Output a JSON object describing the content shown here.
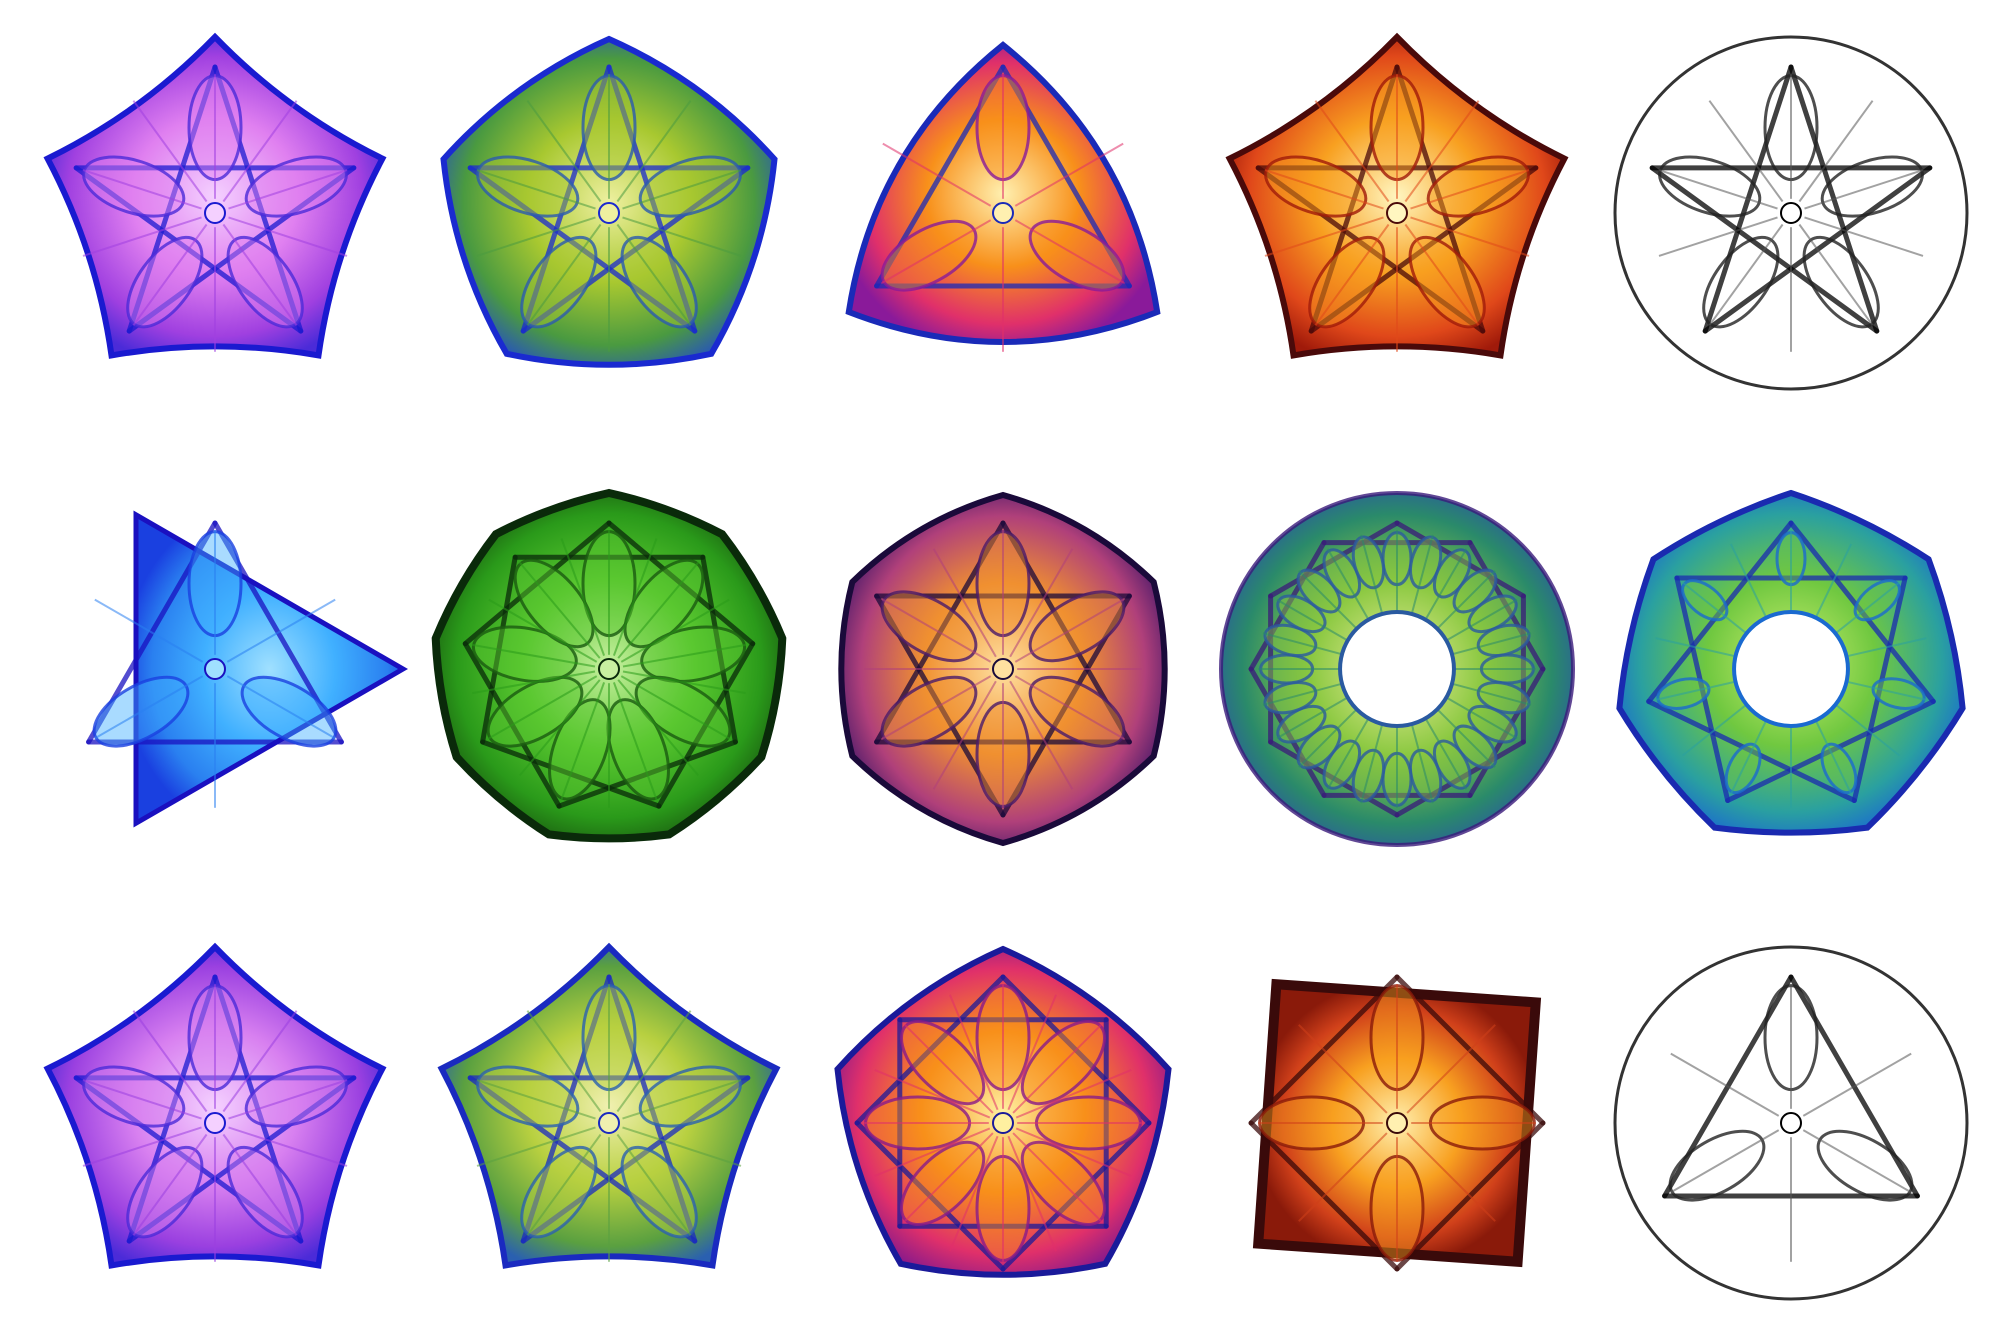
{
  "gallery": {
    "rows": 3,
    "columns": 5,
    "tiles": [
      {
        "id": "r1c1",
        "row": 1,
        "col": 1,
        "shape": "pentagon-star",
        "symmetry": 5,
        "inner_ring": false,
        "palette": [
          "#1a1ad0",
          "#4b2bd8",
          "#a040e0",
          "#e080f0",
          "#f4d0ff"
        ]
      },
      {
        "id": "r1c2",
        "row": 1,
        "col": 2,
        "shape": "rounded-pentagon-flower",
        "symmetry": 5,
        "inner_ring": false,
        "palette": [
          "#1a2ad0",
          "#2a5ab0",
          "#4a9a40",
          "#a8c830",
          "#eef0a0"
        ]
      },
      {
        "id": "r1c3",
        "row": 1,
        "col": 3,
        "shape": "rounded-triangle",
        "symmetry": 3,
        "inner_ring": false,
        "palette": [
          "#1a2ab8",
          "#8a1a9a",
          "#e0306a",
          "#f8901a",
          "#fff0b0"
        ]
      },
      {
        "id": "r1c4",
        "row": 1,
        "col": 4,
        "shape": "star-burst-pentagon",
        "symmetry": 5,
        "inner_ring": false,
        "palette": [
          "#4a0a0a",
          "#a01a0a",
          "#e0481a",
          "#f8a020",
          "#fff6c0"
        ]
      },
      {
        "id": "r1c5",
        "row": 1,
        "col": 5,
        "shape": "ring-of-loops",
        "symmetry": 5,
        "inner_ring": false,
        "palette": [
          "#000000",
          "#222222",
          "#555555",
          "#999999",
          "#ffffff"
        ]
      },
      {
        "id": "r2c1",
        "row": 2,
        "col": 1,
        "shape": "triangle-with-spikes",
        "symmetry": 3,
        "inner_ring": false,
        "palette": [
          "#1a10c0",
          "#1a40e0",
          "#2a80f0",
          "#40b0ff",
          "#a0e0ff"
        ]
      },
      {
        "id": "r2c2",
        "row": 2,
        "col": 2,
        "shape": "nonagon-petals",
        "symmetry": 9,
        "inner_ring": false,
        "palette": [
          "#0a2a0a",
          "#1a5a10",
          "#2a9a1a",
          "#5ac830",
          "#c8f0a0"
        ]
      },
      {
        "id": "r2c3",
        "row": 2,
        "col": 3,
        "shape": "hexagram",
        "symmetry": 6,
        "inner_ring": false,
        "palette": [
          "#1a0a3a",
          "#4a1a6a",
          "#b0407a",
          "#f09030",
          "#ffe0a0"
        ]
      },
      {
        "id": "r2c4",
        "row": 2,
        "col": 4,
        "shape": "annulus-lattice",
        "symmetry": 24,
        "inner_ring": true,
        "palette": [
          "#3a1a7a",
          "#2a5aa0",
          "#2a8a6a",
          "#8ac840",
          "#f0f0a0"
        ]
      },
      {
        "id": "r2c5",
        "row": 2,
        "col": 5,
        "shape": "heptagon-ring",
        "symmetry": 7,
        "inner_ring": true,
        "palette": [
          "#1a2ab0",
          "#1a6ad0",
          "#2aa0a0",
          "#70c840",
          "#d0f070"
        ]
      },
      {
        "id": "r3c1",
        "row": 3,
        "col": 1,
        "shape": "pentagon-pentagram",
        "symmetry": 5,
        "inner_ring": false,
        "palette": [
          "#1a1ad0",
          "#4b2bd8",
          "#9a40e0",
          "#d880f0",
          "#f4d0ff"
        ]
      },
      {
        "id": "r3c2",
        "row": 3,
        "col": 2,
        "shape": "pentagon-squares",
        "symmetry": 5,
        "inner_ring": false,
        "palette": [
          "#1a2ac0",
          "#2a60b0",
          "#5aa040",
          "#b8d040",
          "#f0f0b0"
        ]
      },
      {
        "id": "r3c3",
        "row": 3,
        "col": 3,
        "shape": "rounded-sunburst",
        "symmetry": 8,
        "inner_ring": false,
        "palette": [
          "#1a1a9a",
          "#8a1a8a",
          "#e0306a",
          "#f8901a",
          "#fff0a0"
        ]
      },
      {
        "id": "r3c4",
        "row": 3,
        "col": 4,
        "shape": "square-ribbons",
        "symmetry": 4,
        "inner_ring": false,
        "palette": [
          "#3a0a0a",
          "#8a1a0a",
          "#d0401a",
          "#f8a020",
          "#fff0b0"
        ]
      },
      {
        "id": "r3c5",
        "row": 3,
        "col": 5,
        "shape": "triangle-in-circle",
        "symmetry": 3,
        "inner_ring": false,
        "palette": [
          "#000000",
          "#222222",
          "#555555",
          "#999999",
          "#ffffff"
        ]
      }
    ]
  }
}
